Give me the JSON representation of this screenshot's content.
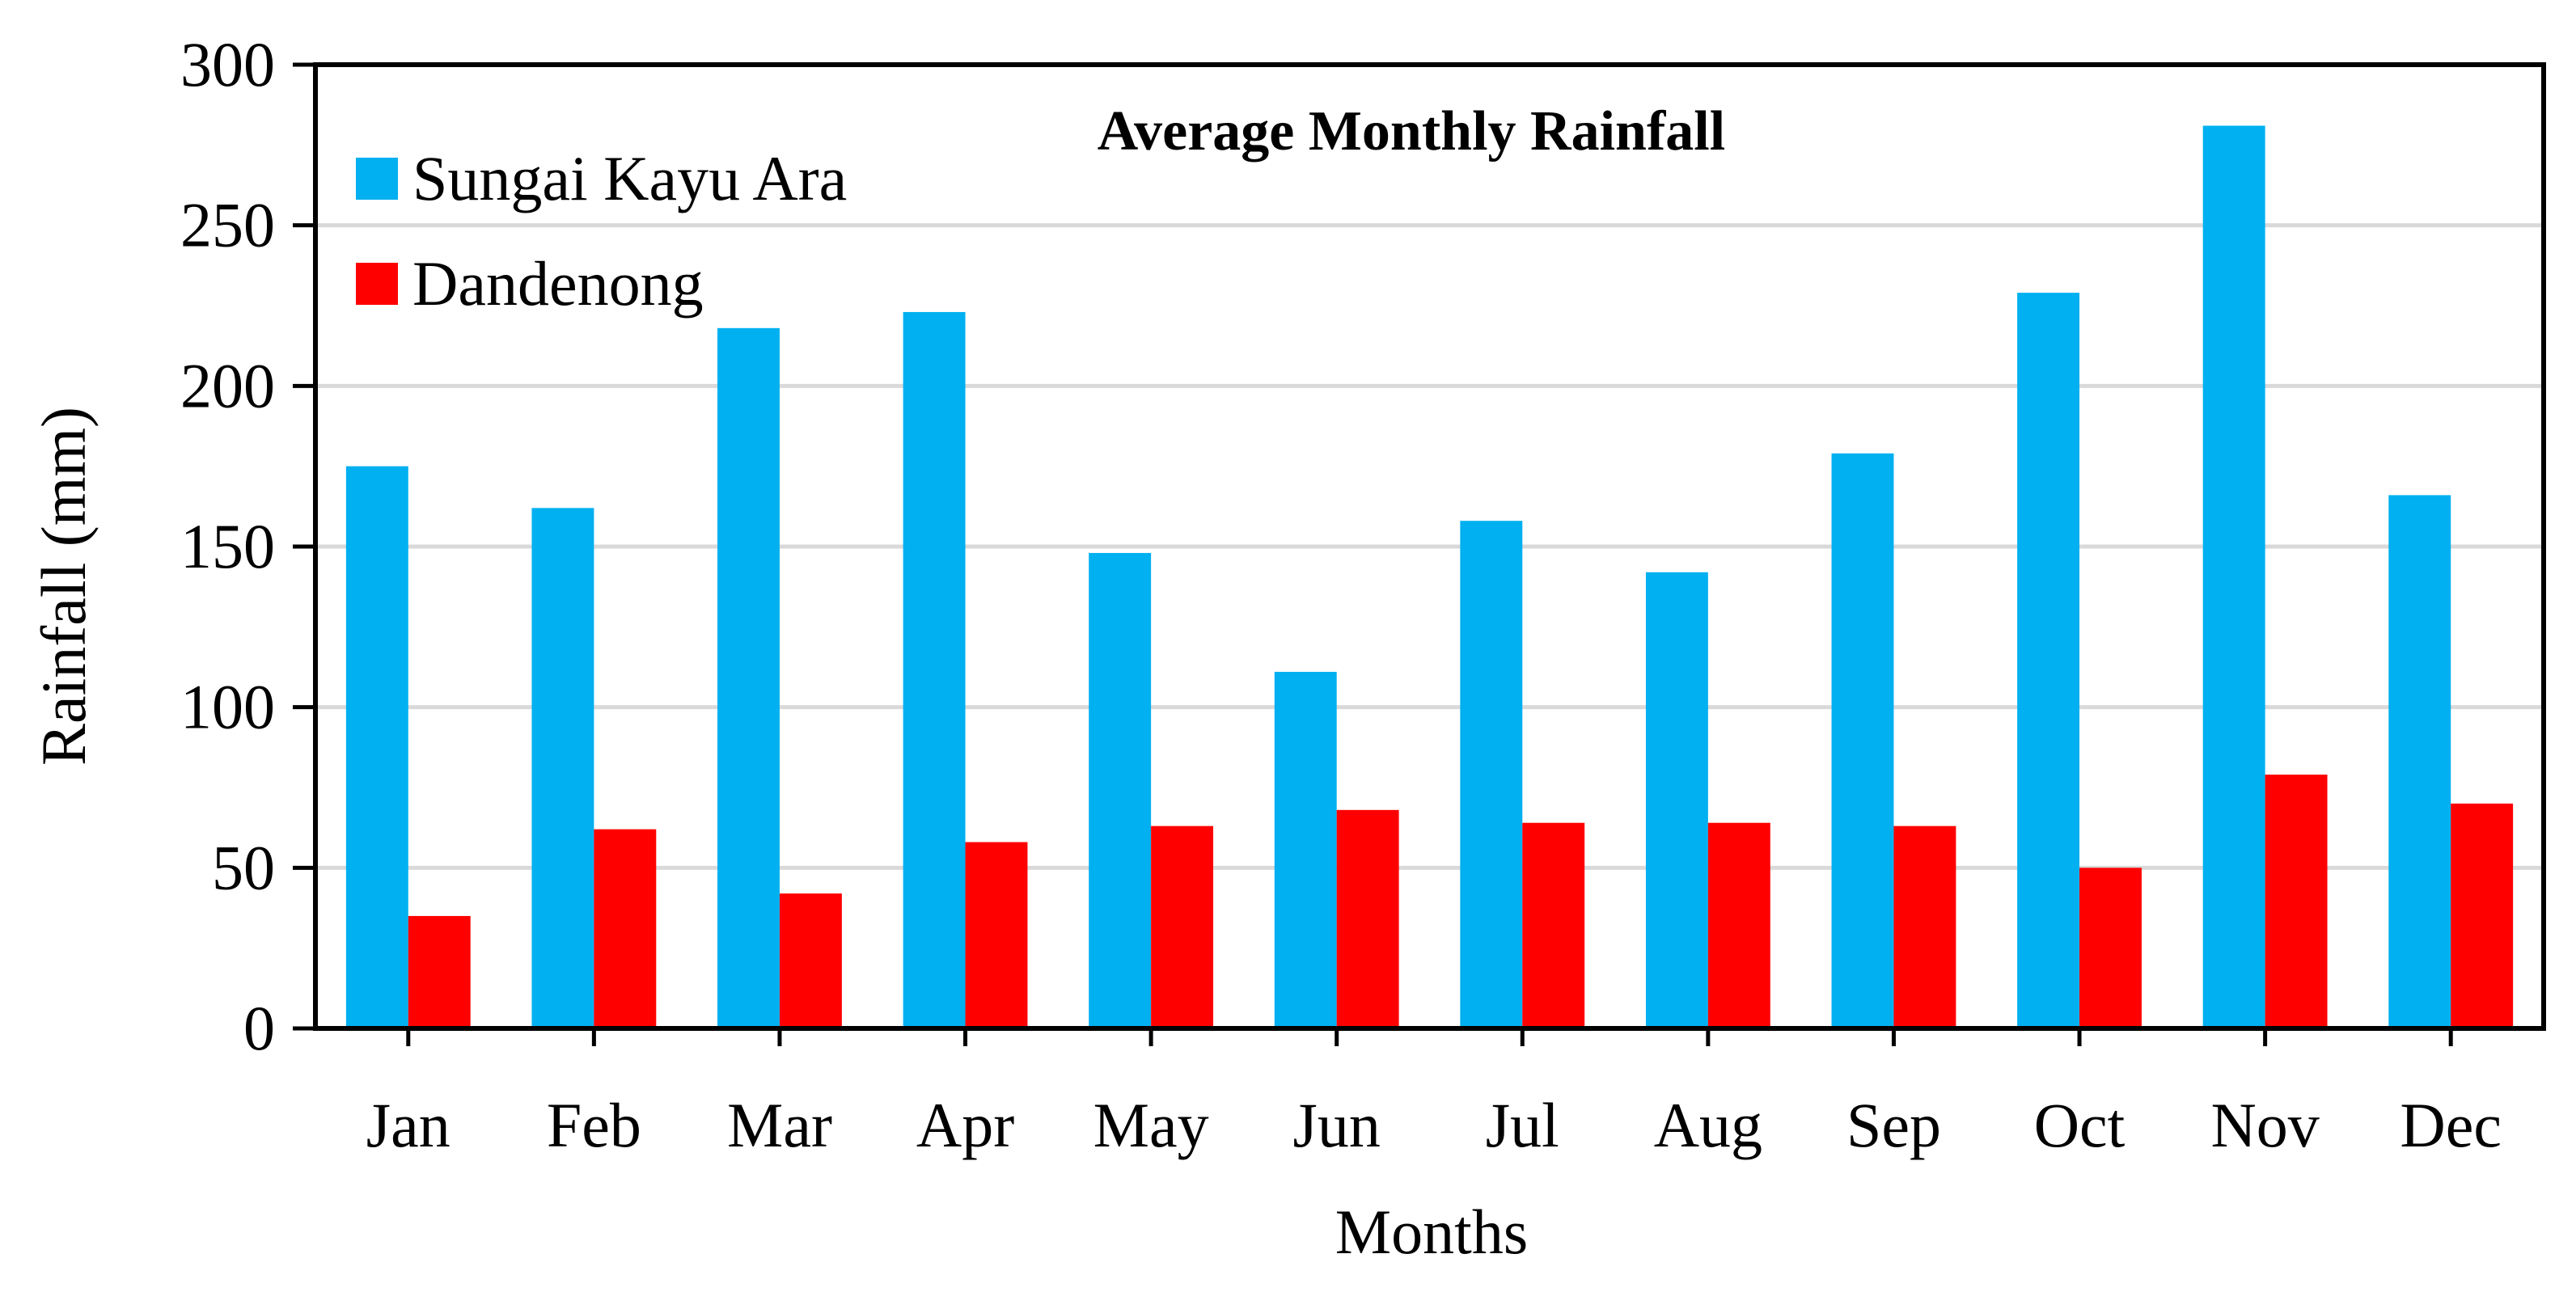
{
  "chart_data": {
    "type": "bar",
    "title": "Average Monthly Rainfall",
    "xlabel": "Months",
    "ylabel": "Rainfall (mm)",
    "ylim": [
      0,
      300
    ],
    "yticks": [
      0,
      50,
      100,
      150,
      200,
      250,
      300
    ],
    "grid": true,
    "legend_position": "top-left",
    "categories": [
      "Jan",
      "Feb",
      "Mar",
      "Apr",
      "May",
      "Jun",
      "Jul",
      "Aug",
      "Sep",
      "Oct",
      "Nov",
      "Dec"
    ],
    "series": [
      {
        "name": "Sungai Kayu Ara",
        "color": "#00B0F0",
        "values": [
          175,
          162,
          218,
          223,
          148,
          111,
          158,
          142,
          179,
          229,
          281,
          166
        ]
      },
      {
        "name": "Dandenong",
        "color": "#FF0000",
        "values": [
          35,
          62,
          42,
          58,
          63,
          68,
          64,
          64,
          63,
          50,
          79,
          70
        ]
      }
    ]
  }
}
